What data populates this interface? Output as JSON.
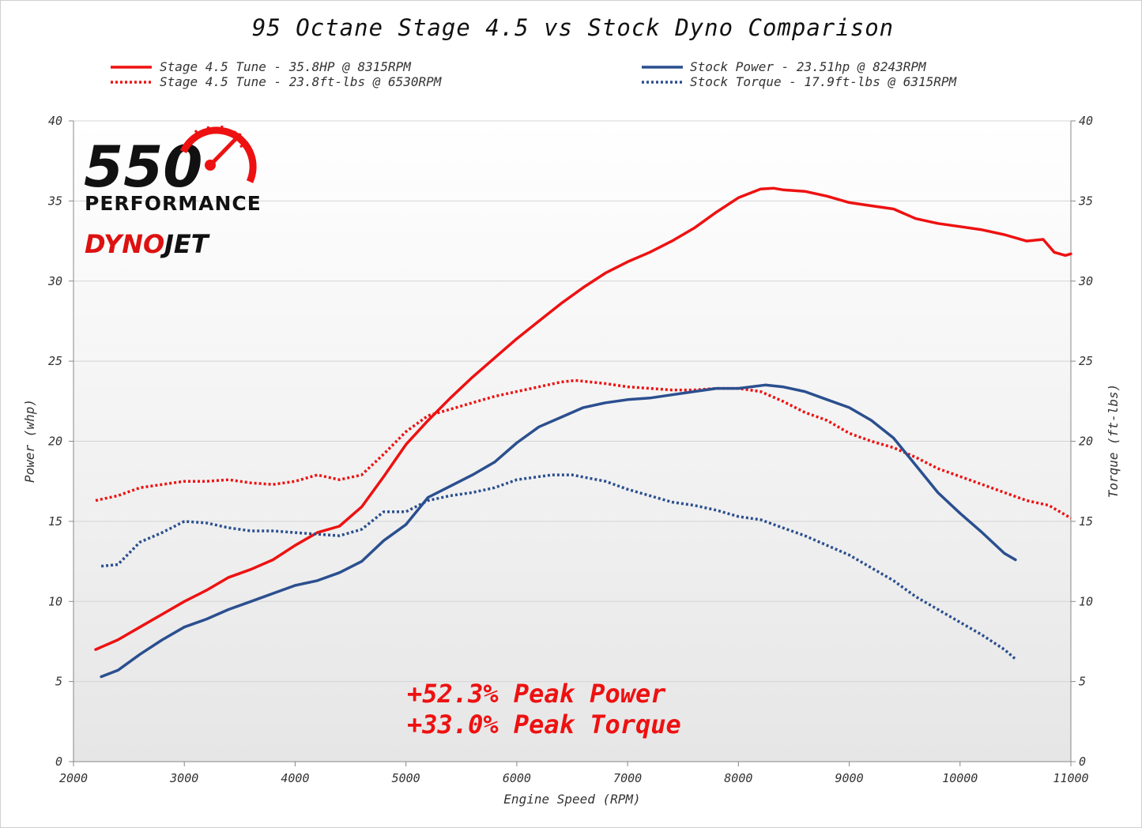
{
  "chart_data": {
    "type": "line",
    "title": "95 Octane Stage 4.5 vs Stock Dyno Comparison",
    "xlabel": "Engine Speed (RPM)",
    "ylabel": "Power (whp)",
    "y2label": "Torque (ft-lbs)",
    "xlim": [
      2000,
      11000
    ],
    "ylim": [
      0,
      40
    ],
    "y2lim": [
      0,
      40
    ],
    "x_ticks": [
      "2000",
      "3000",
      "4000",
      "5000",
      "6000",
      "7000",
      "8000",
      "9000",
      "10000",
      "11000"
    ],
    "y_ticks": [
      "0",
      "5",
      "10",
      "15",
      "20",
      "25",
      "30",
      "35",
      "40"
    ],
    "y2_ticks": [
      "0",
      "5",
      "10",
      "15",
      "20",
      "25",
      "30",
      "35",
      "40"
    ],
    "legend_position": "top",
    "series": [
      {
        "name": "Stage 4.5 Tune - 35.8HP @ 8315RPM",
        "color": "#ee1111",
        "style": "solid",
        "points": [
          [
            2200,
            7.0
          ],
          [
            2400,
            7.6
          ],
          [
            2600,
            8.4
          ],
          [
            2800,
            9.2
          ],
          [
            3000,
            10.0
          ],
          [
            3200,
            10.7
          ],
          [
            3400,
            11.5
          ],
          [
            3600,
            12.0
          ],
          [
            3800,
            12.6
          ],
          [
            4000,
            13.5
          ],
          [
            4200,
            14.3
          ],
          [
            4400,
            14.7
          ],
          [
            4600,
            15.9
          ],
          [
            4800,
            17.8
          ],
          [
            5000,
            19.8
          ],
          [
            5200,
            21.3
          ],
          [
            5400,
            22.7
          ],
          [
            5600,
            24.0
          ],
          [
            5800,
            25.2
          ],
          [
            6000,
            26.4
          ],
          [
            6200,
            27.5
          ],
          [
            6400,
            28.6
          ],
          [
            6600,
            29.6
          ],
          [
            6800,
            30.5
          ],
          [
            7000,
            31.2
          ],
          [
            7200,
            31.8
          ],
          [
            7400,
            32.5
          ],
          [
            7600,
            33.3
          ],
          [
            7800,
            34.3
          ],
          [
            8000,
            35.2
          ],
          [
            8200,
            35.75
          ],
          [
            8315,
            35.8
          ],
          [
            8400,
            35.7
          ],
          [
            8600,
            35.6
          ],
          [
            8800,
            35.3
          ],
          [
            9000,
            34.9
          ],
          [
            9200,
            34.7
          ],
          [
            9400,
            34.5
          ],
          [
            9600,
            33.9
          ],
          [
            9800,
            33.6
          ],
          [
            10000,
            33.4
          ],
          [
            10200,
            33.2
          ],
          [
            10400,
            32.9
          ],
          [
            10600,
            32.5
          ],
          [
            10750,
            32.6
          ],
          [
            10850,
            31.8
          ],
          [
            10950,
            31.6
          ],
          [
            11000,
            31.7
          ]
        ]
      },
      {
        "name": "Stage 4.5 Tune - 23.8ft-lbs @ 6530RPM",
        "color": "#ee1111",
        "style": "dotted",
        "points": [
          [
            2200,
            16.3
          ],
          [
            2400,
            16.6
          ],
          [
            2600,
            17.1
          ],
          [
            2800,
            17.3
          ],
          [
            3000,
            17.5
          ],
          [
            3200,
            17.5
          ],
          [
            3400,
            17.6
          ],
          [
            3600,
            17.4
          ],
          [
            3800,
            17.3
          ],
          [
            4000,
            17.5
          ],
          [
            4200,
            17.9
          ],
          [
            4400,
            17.6
          ],
          [
            4600,
            17.9
          ],
          [
            4800,
            19.2
          ],
          [
            5000,
            20.6
          ],
          [
            5200,
            21.6
          ],
          [
            5400,
            22.0
          ],
          [
            5600,
            22.4
          ],
          [
            5800,
            22.8
          ],
          [
            6000,
            23.1
          ],
          [
            6200,
            23.4
          ],
          [
            6400,
            23.7
          ],
          [
            6530,
            23.8
          ],
          [
            6800,
            23.6
          ],
          [
            7000,
            23.4
          ],
          [
            7200,
            23.3
          ],
          [
            7400,
            23.2
          ],
          [
            7600,
            23.2
          ],
          [
            7800,
            23.3
          ],
          [
            8000,
            23.3
          ],
          [
            8200,
            23.1
          ],
          [
            8400,
            22.5
          ],
          [
            8600,
            21.8
          ],
          [
            8800,
            21.3
          ],
          [
            9000,
            20.5
          ],
          [
            9200,
            20.0
          ],
          [
            9400,
            19.6
          ],
          [
            9600,
            19.0
          ],
          [
            9800,
            18.3
          ],
          [
            10000,
            17.8
          ],
          [
            10200,
            17.3
          ],
          [
            10400,
            16.8
          ],
          [
            10600,
            16.3
          ],
          [
            10800,
            16.0
          ],
          [
            11000,
            15.2
          ]
        ]
      },
      {
        "name": "Stock Power - 23.51hp @ 8243RPM",
        "color": "#2b4f8f",
        "style": "solid",
        "points": [
          [
            2250,
            5.3
          ],
          [
            2400,
            5.7
          ],
          [
            2600,
            6.7
          ],
          [
            2800,
            7.6
          ],
          [
            3000,
            8.4
          ],
          [
            3200,
            8.9
          ],
          [
            3400,
            9.5
          ],
          [
            3600,
            10.0
          ],
          [
            3800,
            10.5
          ],
          [
            4000,
            11.0
          ],
          [
            4200,
            11.3
          ],
          [
            4400,
            11.8
          ],
          [
            4600,
            12.5
          ],
          [
            4800,
            13.8
          ],
          [
            5000,
            14.8
          ],
          [
            5200,
            16.5
          ],
          [
            5400,
            17.2
          ],
          [
            5600,
            17.9
          ],
          [
            5800,
            18.7
          ],
          [
            6000,
            19.9
          ],
          [
            6200,
            20.9
          ],
          [
            6400,
            21.5
          ],
          [
            6600,
            22.1
          ],
          [
            6800,
            22.4
          ],
          [
            7000,
            22.6
          ],
          [
            7200,
            22.7
          ],
          [
            7400,
            22.9
          ],
          [
            7600,
            23.1
          ],
          [
            7800,
            23.3
          ],
          [
            8000,
            23.3
          ],
          [
            8243,
            23.51
          ],
          [
            8400,
            23.4
          ],
          [
            8600,
            23.1
          ],
          [
            8800,
            22.6
          ],
          [
            9000,
            22.1
          ],
          [
            9200,
            21.3
          ],
          [
            9400,
            20.2
          ],
          [
            9600,
            18.5
          ],
          [
            9800,
            16.8
          ],
          [
            10000,
            15.5
          ],
          [
            10200,
            14.3
          ],
          [
            10400,
            13.0
          ],
          [
            10500,
            12.6
          ]
        ]
      },
      {
        "name": "Stock Torque - 17.9ft-lbs @ 6315RPM",
        "color": "#2b4f8f",
        "style": "dotted",
        "points": [
          [
            2250,
            12.2
          ],
          [
            2400,
            12.3
          ],
          [
            2600,
            13.7
          ],
          [
            2800,
            14.3
          ],
          [
            3000,
            15.0
          ],
          [
            3200,
            14.9
          ],
          [
            3400,
            14.6
          ],
          [
            3600,
            14.4
          ],
          [
            3800,
            14.4
          ],
          [
            4000,
            14.3
          ],
          [
            4200,
            14.2
          ],
          [
            4400,
            14.1
          ],
          [
            4600,
            14.5
          ],
          [
            4800,
            15.6
          ],
          [
            5000,
            15.6
          ],
          [
            5200,
            16.3
          ],
          [
            5400,
            16.6
          ],
          [
            5600,
            16.8
          ],
          [
            5800,
            17.1
          ],
          [
            6000,
            17.6
          ],
          [
            6315,
            17.9
          ],
          [
            6500,
            17.9
          ],
          [
            6800,
            17.5
          ],
          [
            7000,
            17.0
          ],
          [
            7200,
            16.6
          ],
          [
            7400,
            16.2
          ],
          [
            7600,
            16.0
          ],
          [
            7800,
            15.7
          ],
          [
            8000,
            15.3
          ],
          [
            8200,
            15.1
          ],
          [
            8400,
            14.6
          ],
          [
            8600,
            14.1
          ],
          [
            8800,
            13.5
          ],
          [
            9000,
            12.9
          ],
          [
            9200,
            12.1
          ],
          [
            9400,
            11.3
          ],
          [
            9600,
            10.3
          ],
          [
            9800,
            9.5
          ],
          [
            10000,
            8.7
          ],
          [
            10200,
            7.9
          ],
          [
            10400,
            7.0
          ],
          [
            10500,
            6.4
          ]
        ]
      }
    ],
    "annotations": [
      "+52.3% Peak Power",
      "+33.0% Peak Torque"
    ]
  },
  "logo": {
    "number": "550",
    "subtitle": "PERFORMANCE",
    "brand_left": "DYNO",
    "brand_right": "JET"
  }
}
